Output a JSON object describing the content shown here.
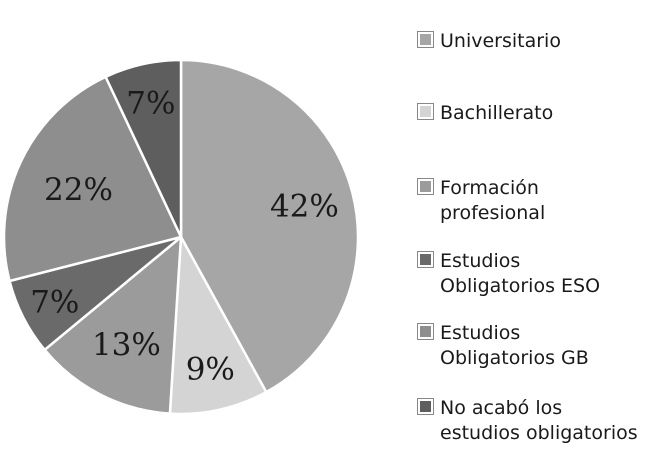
{
  "chart_data": {
    "type": "pie",
    "title": "",
    "slices": [
      {
        "name": "Universitario",
        "value": 42,
        "label": "42%",
        "color": "#a6a6a6",
        "label_color": "#1a1a1a"
      },
      {
        "name": "Bachillerato",
        "value": 9,
        "label": "9%",
        "color": "#d4d4d4",
        "label_color": "#1a1a1a"
      },
      {
        "name": "Formación profesional",
        "value": 13,
        "label": "13%",
        "color": "#9b9b9b",
        "label_color": "#1a1a1a"
      },
      {
        "name": "Estudios Obligatorios ESO",
        "value": 7,
        "label": "7%",
        "color": "#6a6a6a",
        "label_color": "#1a1a1a"
      },
      {
        "name": "Estudios Obligatorios GB",
        "value": 22,
        "label": "22%",
        "color": "#8e8e8e",
        "label_color": "#1a1a1a"
      },
      {
        "name": "No acabó los estudios obligatorios",
        "value": 7,
        "label": "7%",
        "color": "#5e5e5e",
        "label_color": "#1a1a1a"
      }
    ],
    "legend": {
      "position": "right",
      "entries": [
        {
          "lines": [
            "Universitario"
          ]
        },
        {
          "lines": [
            "Bachillerato"
          ]
        },
        {
          "lines": [
            "Formación",
            "profesional"
          ]
        },
        {
          "lines": [
            "Estudios",
            "Obligatorios ESO"
          ]
        },
        {
          "lines": [
            "Estudios",
            "Obligatorios GB"
          ]
        },
        {
          "lines": [
            "No acabó los",
            "estudios obligatorios"
          ]
        }
      ]
    }
  }
}
